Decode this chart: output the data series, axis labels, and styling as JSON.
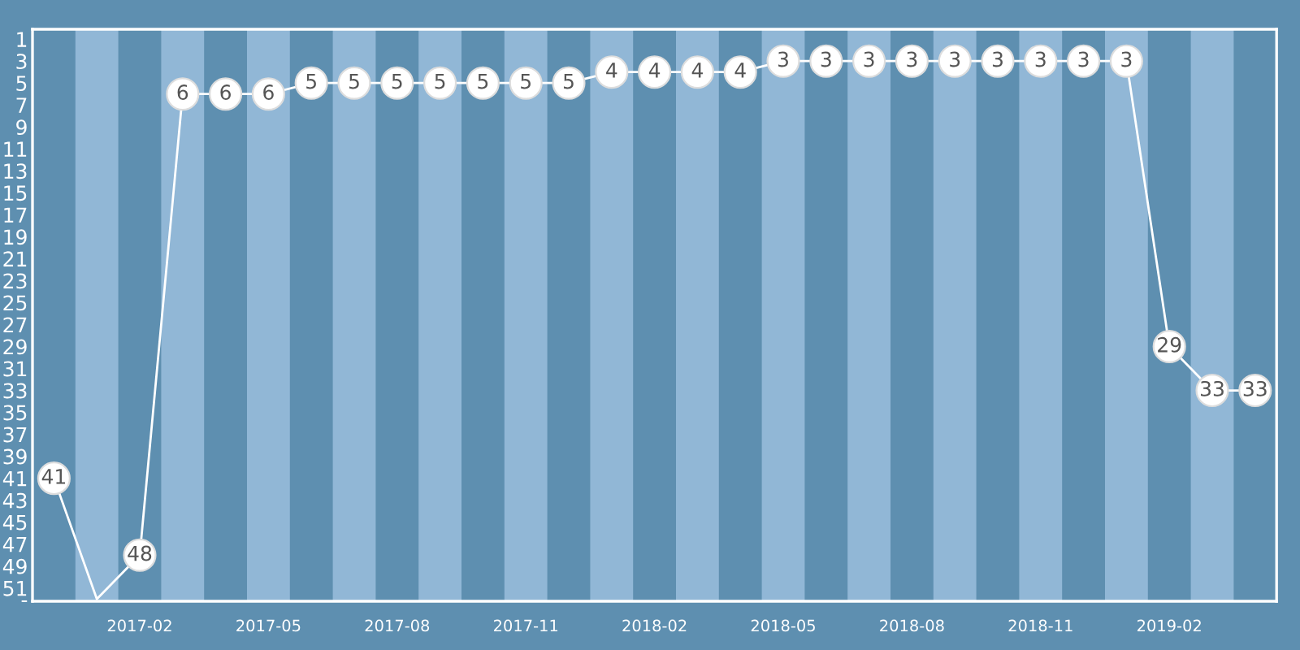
{
  "chart_data": {
    "type": "line",
    "x": [
      "2016-12",
      "2017-01",
      "2017-02",
      "2017-03",
      "2017-04",
      "2017-05",
      "2017-06",
      "2017-07",
      "2017-08",
      "2017-09",
      "2017-10",
      "2017-11",
      "2017-12",
      "2018-01",
      "2018-02",
      "2018-03",
      "2018-04",
      "2018-05",
      "2018-06",
      "2018-07",
      "2018-08",
      "2018-09",
      "2018-10",
      "2018-11",
      "2018-12",
      "2019-01",
      "2019-02",
      "2019-03",
      "2019-04"
    ],
    "series": [
      {
        "color": "#ffffff",
        "values": [
          41,
          52,
          48,
          6,
          6,
          6,
          5,
          5,
          5,
          5,
          5,
          5,
          5,
          4,
          4,
          4,
          4,
          3,
          3,
          3,
          3,
          3,
          3,
          3,
          3,
          3,
          29,
          33,
          33
        ],
        "value_labels": [
          "41",
          null,
          "48",
          "6",
          "6",
          "6",
          "5",
          "5",
          "5",
          "5",
          "5",
          "5",
          "5",
          "4",
          "4",
          "4",
          "4",
          "3",
          "3",
          "3",
          "3",
          "3",
          "3",
          "3",
          "3",
          "3",
          "29",
          "33",
          "33"
        ]
      }
    ],
    "marker": "circle",
    "line_style": "solid",
    "xlim": [
      "2016-11-16",
      "2019-04-16"
    ],
    "xticks": [
      "2017-02",
      "2017-05",
      "2017-08",
      "2017-11",
      "2018-02",
      "2018-05",
      "2018-08",
      "2018-11",
      "2019-02"
    ],
    "ylim": [
      52.2,
      0.1
    ],
    "yticks": [
      1,
      3,
      5,
      7,
      9,
      11,
      13,
      15,
      17,
      19,
      21,
      23,
      25,
      27,
      29,
      31,
      33,
      35,
      37,
      39,
      41,
      43,
      45,
      47,
      49,
      51,
      {
        "value": 52,
        "label": "-"
      }
    ],
    "bands": [
      {
        "axis": "x",
        "from": "2016-12-16",
        "to": "2017-01-16",
        "color": "#91b7d6"
      },
      {
        "axis": "x",
        "from": "2017-02-16",
        "to": "2017-03-16",
        "color": "#91b7d6"
      },
      {
        "axis": "x",
        "from": "2017-04-16",
        "to": "2017-05-16",
        "color": "#91b7d6"
      },
      {
        "axis": "x",
        "from": "2017-06-16",
        "to": "2017-07-16",
        "color": "#91b7d6"
      },
      {
        "axis": "x",
        "from": "2017-08-16",
        "to": "2017-09-16",
        "color": "#91b7d6"
      },
      {
        "axis": "x",
        "from": "2017-10-16",
        "to": "2017-11-16",
        "color": "#91b7d6"
      },
      {
        "axis": "x",
        "from": "2017-12-16",
        "to": "2018-01-16",
        "color": "#91b7d6"
      },
      {
        "axis": "x",
        "from": "2018-02-16",
        "to": "2018-03-16",
        "color": "#91b7d6"
      },
      {
        "axis": "x",
        "from": "2018-04-16",
        "to": "2018-05-16",
        "color": "#91b7d6"
      },
      {
        "axis": "x",
        "from": "2018-06-16",
        "to": "2018-07-16",
        "color": "#91b7d6"
      },
      {
        "axis": "x",
        "from": "2018-08-16",
        "to": "2018-09-16",
        "color": "#91b7d6"
      },
      {
        "axis": "x",
        "from": "2018-10-16",
        "to": "2018-11-16",
        "color": "#91b7d6"
      },
      {
        "axis": "x",
        "from": "2018-12-16",
        "to": "2019-01-16",
        "color": "#91b7d6"
      },
      {
        "axis": "x",
        "from": "2019-02-16",
        "to": "2019-03-16",
        "color": "#91b7d6"
      }
    ]
  }
}
